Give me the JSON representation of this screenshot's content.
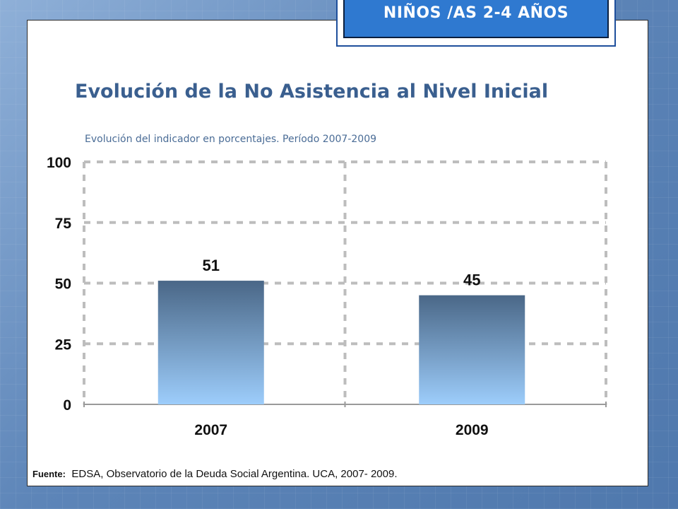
{
  "badge": {
    "text": "NIÑOS /AS 2-4 AÑOS"
  },
  "title": "Evolución de la No Asistencia al Nivel Inicial",
  "subtitle": "Evolución del indicador en porcentajes.  Período 2007-2009",
  "source": {
    "label": "Fuente:",
    "text": "EDSA, Observatorio de la Deuda Social Argentina. UCA, 2007- 2009."
  },
  "chart_data": {
    "type": "bar",
    "categories": [
      "2007",
      "2009"
    ],
    "values": [
      51,
      45
    ],
    "data_labels": [
      "51",
      "45"
    ],
    "ylim": [
      0,
      100
    ],
    "yticks": [
      0,
      25,
      50,
      75,
      100
    ],
    "ytick_labels": [
      "0",
      "25",
      "50",
      "75",
      "100"
    ],
    "grid": true,
    "grid_style": "dashed",
    "legend": "none",
    "bar_gradient": [
      "#4a6787",
      "#9dcdfb"
    ],
    "grid_color": "#bdbdbd"
  }
}
